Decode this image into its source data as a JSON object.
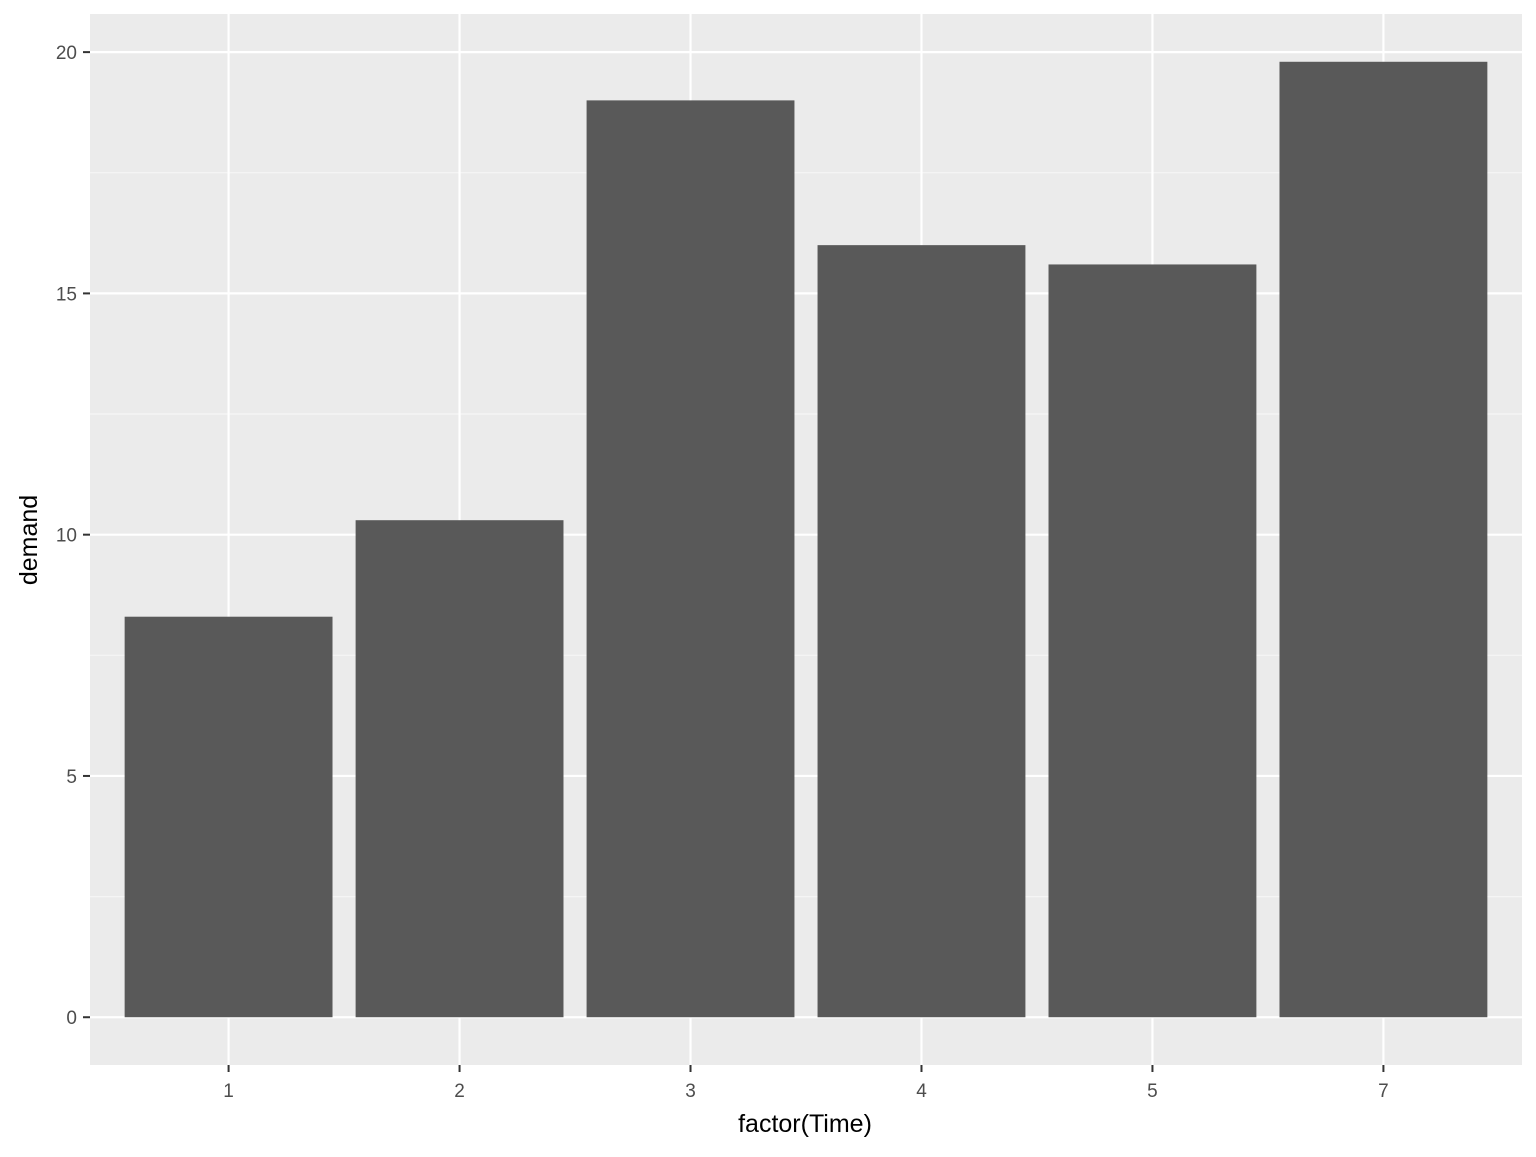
{
  "colors": {
    "panel_background": "#ebebeb",
    "grid_major": "#ffffff",
    "grid_minor": "#f5f5f5",
    "bar_fill": "#595959",
    "tick_color": "#333333",
    "tick_label_color": "#4d4d4d"
  },
  "chart_data": {
    "type": "bar",
    "categories": [
      "1",
      "2",
      "3",
      "4",
      "5",
      "7"
    ],
    "values": [
      8.3,
      10.3,
      19.0,
      16.0,
      15.6,
      19.8
    ],
    "xlabel": "factor(Time)",
    "ylabel": "demand",
    "ylim": [
      -0.99,
      20.79
    ],
    "yticks": [
      0,
      5,
      10,
      15,
      20
    ],
    "ytick_labels": [
      "0",
      "5",
      "10",
      "15",
      "20"
    ],
    "grid": true,
    "legend": "none"
  }
}
